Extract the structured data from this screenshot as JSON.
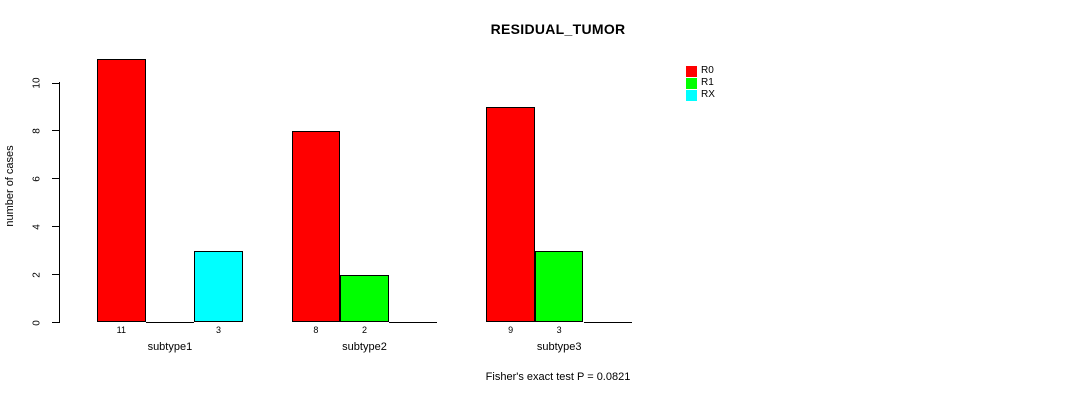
{
  "chart_data": {
    "type": "bar",
    "grouped": true,
    "title": "RESIDUAL_TUMOR",
    "xlabel": "",
    "ylabel": "number of cases",
    "footnote": "Fisher's exact test P = 0.0821",
    "categories": [
      "subtype1",
      "subtype2",
      "subtype3"
    ],
    "series": [
      {
        "name": "R0",
        "color": "#FF0000",
        "values": [
          11,
          8,
          9
        ]
      },
      {
        "name": "R1",
        "color": "#00FF00",
        "values": [
          0,
          2,
          3
        ]
      },
      {
        "name": "RX",
        "color": "#00FFFF",
        "values": [
          3,
          0,
          0
        ]
      }
    ],
    "yticks": [
      0,
      2,
      4,
      6,
      8,
      10
    ],
    "ylim": [
      0,
      11.6
    ],
    "grid": false,
    "legend_position": "top-right",
    "bar_value_labels_shown_for_nonzero_bars": true,
    "background_color": "#FFFFFF",
    "axis_color": "#000000"
  }
}
